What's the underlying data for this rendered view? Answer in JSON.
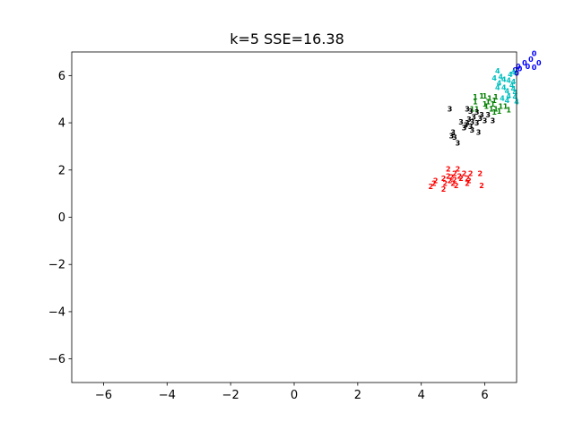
{
  "chart_data": {
    "type": "scatter",
    "title": "k=5  SSE=16.38",
    "xlim": [
      -7,
      7
    ],
    "ylim": [
      -7,
      7
    ],
    "xticks": [
      -6,
      -4,
      -2,
      0,
      2,
      4,
      6
    ],
    "yticks": [
      -6,
      -4,
      -2,
      0,
      2,
      4,
      6
    ],
    "xtick_labels": [
      "−6",
      "−4",
      "−2",
      "0",
      "2",
      "4",
      "6"
    ],
    "ytick_labels": [
      "−6",
      "−4",
      "−2",
      "0",
      "2",
      "4",
      "6"
    ],
    "grid": false,
    "marker_style": "cluster-index-text",
    "series": [
      {
        "label": "0",
        "color": "#0000ff",
        "points": [
          [
            7.55,
            6.95
          ],
          [
            7.45,
            6.7
          ],
          [
            7.25,
            6.55
          ],
          [
            7.7,
            6.55
          ],
          [
            7.05,
            6.4
          ],
          [
            7.35,
            6.4
          ],
          [
            7.55,
            6.35
          ],
          [
            7.1,
            6.3
          ],
          [
            6.95,
            6.25
          ],
          [
            7.0,
            6.1
          ]
        ]
      },
      {
        "label": "1",
        "color": "#008000",
        "points": [
          [
            5.7,
            5.1
          ],
          [
            5.9,
            5.15
          ],
          [
            6.0,
            5.15
          ],
          [
            6.15,
            5.05
          ],
          [
            6.35,
            5.1
          ],
          [
            5.7,
            4.9
          ],
          [
            6.1,
            4.9
          ],
          [
            6.3,
            4.95
          ],
          [
            6.0,
            4.8
          ],
          [
            6.25,
            4.8
          ],
          [
            5.6,
            4.6
          ],
          [
            5.75,
            4.6
          ],
          [
            6.05,
            4.7
          ],
          [
            6.5,
            4.7
          ],
          [
            6.65,
            4.7
          ],
          [
            6.2,
            4.6
          ],
          [
            6.35,
            4.6
          ],
          [
            6.75,
            4.55
          ],
          [
            6.45,
            4.5
          ],
          [
            6.3,
            4.45
          ]
        ]
      },
      {
        "label": "2",
        "color": "#ff0000",
        "points": [
          [
            4.85,
            2.05
          ],
          [
            5.15,
            2.05
          ],
          [
            5.05,
            1.85
          ],
          [
            5.35,
            1.85
          ],
          [
            5.55,
            1.85
          ],
          [
            5.85,
            1.85
          ],
          [
            4.85,
            1.75
          ],
          [
            5.2,
            1.75
          ],
          [
            4.7,
            1.65
          ],
          [
            4.95,
            1.7
          ],
          [
            5.25,
            1.65
          ],
          [
            5.45,
            1.65
          ],
          [
            4.45,
            1.55
          ],
          [
            4.9,
            1.55
          ],
          [
            5.05,
            1.6
          ],
          [
            5.5,
            1.55
          ],
          [
            4.4,
            1.45
          ],
          [
            4.75,
            1.45
          ],
          [
            5.0,
            1.45
          ],
          [
            5.45,
            1.45
          ],
          [
            4.3,
            1.3
          ],
          [
            5.1,
            1.35
          ],
          [
            5.9,
            1.35
          ],
          [
            4.7,
            1.2
          ]
        ]
      },
      {
        "label": "3",
        "color": "#000000",
        "points": [
          [
            4.9,
            4.6
          ],
          [
            5.45,
            4.6
          ],
          [
            5.55,
            4.5
          ],
          [
            5.75,
            4.45
          ],
          [
            5.9,
            4.35
          ],
          [
            5.65,
            4.25
          ],
          [
            5.85,
            4.2
          ],
          [
            6.1,
            4.35
          ],
          [
            5.5,
            4.15
          ],
          [
            6.0,
            4.1
          ],
          [
            6.25,
            4.1
          ],
          [
            5.25,
            4.05
          ],
          [
            5.45,
            4.0
          ],
          [
            5.6,
            4.05
          ],
          [
            5.75,
            4.0
          ],
          [
            5.4,
            3.9
          ],
          [
            5.55,
            3.85
          ],
          [
            5.35,
            3.8
          ],
          [
            5.6,
            3.7
          ],
          [
            5.0,
            3.6
          ],
          [
            5.8,
            3.6
          ],
          [
            4.95,
            3.45
          ],
          [
            5.05,
            3.4
          ],
          [
            5.15,
            3.15
          ]
        ]
      },
      {
        "label": "4",
        "color": "#00bfbf",
        "points": [
          [
            6.4,
            6.2
          ],
          [
            6.8,
            6.05
          ],
          [
            6.9,
            6.15
          ],
          [
            6.3,
            5.9
          ],
          [
            6.5,
            5.95
          ],
          [
            6.6,
            5.85
          ],
          [
            6.75,
            5.8
          ],
          [
            6.9,
            5.75
          ],
          [
            6.45,
            5.7
          ],
          [
            6.85,
            5.6
          ],
          [
            6.4,
            5.5
          ],
          [
            6.6,
            5.5
          ],
          [
            6.9,
            5.45
          ],
          [
            6.7,
            5.35
          ],
          [
            6.95,
            5.3
          ],
          [
            6.75,
            5.15
          ],
          [
            6.95,
            5.1
          ],
          [
            6.55,
            5.05
          ],
          [
            6.7,
            4.95
          ],
          [
            7.0,
            4.9
          ]
        ]
      }
    ]
  }
}
